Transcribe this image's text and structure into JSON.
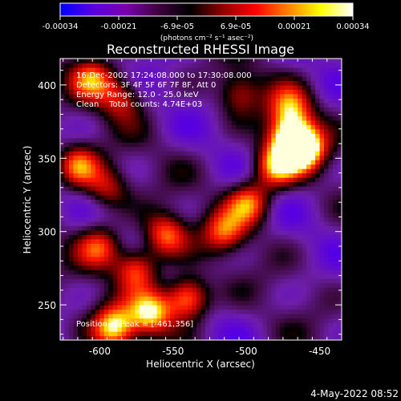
{
  "chart_data": {
    "type": "heatmap",
    "title": "Reconstructed RHESSI Image",
    "xlabel": "Heliocentric X (arcsec)",
    "ylabel": "Heliocentric Y (arcsec)",
    "xlim": [
      -627,
      -435
    ],
    "ylim": [
      226,
      418
    ],
    "x_ticks": [
      -600,
      -550,
      -500,
      -450
    ],
    "y_ticks": [
      250,
      300,
      350,
      400
    ],
    "colorbar": {
      "ticks": [
        "-0.00034",
        "-0.00021",
        "-6.9e-05",
        "6.9e-05",
        "0.00021",
        "0.00034"
      ],
      "range": [
        -0.00034,
        0.00034
      ],
      "unit_label": "(photons cm⁻² s⁻¹ asec⁻²)",
      "colormap": [
        "#0000ff",
        "#5a00e0",
        "#7a00b0",
        "#400040",
        "#000000",
        "#900000",
        "#ff0000",
        "#ff8000",
        "#ffff00",
        "#ffffff"
      ]
    },
    "annotations": {
      "time_range": "16-Dec-2002 17:24:08.000 to 17:30:08.000",
      "detectors": "Detectors: 3F 4F 5F 6F 7F 8F, Att 0",
      "energy": "Energy Range: 12.0 - 25.0 keV",
      "method": "Clean    Total counts: 4.74E+03",
      "peak": "Position of Peak = [-461,356]"
    },
    "peak": {
      "x": -461,
      "y": 356
    },
    "bright_regions": [
      {
        "x": -461,
        "y": 356,
        "intensity": 1.0
      },
      {
        "x": -470,
        "y": 365,
        "intensity": 0.9
      },
      {
        "x": -480,
        "y": 345,
        "intensity": 0.8
      },
      {
        "x": -498,
        "y": 320,
        "intensity": 0.7
      },
      {
        "x": -515,
        "y": 300,
        "intensity": 0.6
      },
      {
        "x": -470,
        "y": 385,
        "intensity": 0.65
      },
      {
        "x": -540,
        "y": 255,
        "intensity": 0.9
      },
      {
        "x": -565,
        "y": 245,
        "intensity": 0.85
      },
      {
        "x": -590,
        "y": 235,
        "intensity": 0.85
      },
      {
        "x": -555,
        "y": 298,
        "intensity": 0.7
      },
      {
        "x": -575,
        "y": 275,
        "intensity": 0.7
      },
      {
        "x": -600,
        "y": 290,
        "intensity": 0.6
      },
      {
        "x": -615,
        "y": 345,
        "intensity": 0.7
      },
      {
        "x": -595,
        "y": 330,
        "intensity": 0.5
      },
      {
        "x": -605,
        "y": 405,
        "intensity": 0.6
      },
      {
        "x": -585,
        "y": 392,
        "intensity": 0.5
      },
      {
        "x": -505,
        "y": 395,
        "intensity": 0.45
      }
    ]
  },
  "footer_date": "4-May-2022 08:52"
}
